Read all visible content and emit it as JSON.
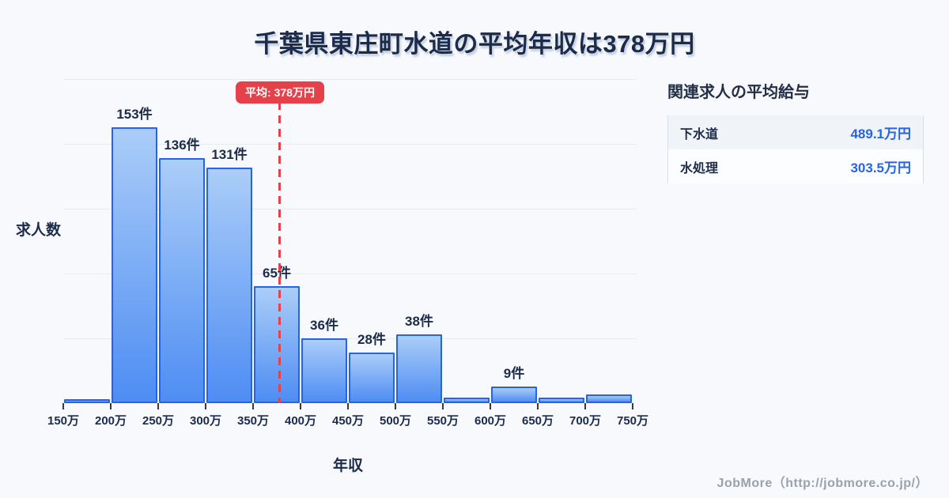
{
  "page": {
    "title": "千葉県東庄町水道の平均年収は378万円",
    "background_color": "#f7f9fc"
  },
  "chart_data": {
    "type": "bar",
    "title": "千葉県東庄町水道の平均年収は378万円",
    "xlabel": "年収",
    "ylabel": "求人数",
    "x_tick_labels": [
      "150万",
      "200万",
      "250万",
      "300万",
      "350万",
      "400万",
      "450万",
      "500万",
      "550万",
      "600万",
      "650万",
      "700万",
      "750万"
    ],
    "xlim": [
      150,
      750
    ],
    "ylim": [
      0,
      180
    ],
    "grid": true,
    "grid_divisions": 5,
    "bins": [
      {
        "range_start": "150万",
        "range_end": "200万",
        "count": 2,
        "label": ""
      },
      {
        "range_start": "200万",
        "range_end": "250万",
        "count": 153,
        "label": "153件"
      },
      {
        "range_start": "250万",
        "range_end": "300万",
        "count": 136,
        "label": "136件"
      },
      {
        "range_start": "300万",
        "range_end": "350万",
        "count": 131,
        "label": "131件"
      },
      {
        "range_start": "350万",
        "range_end": "400万",
        "count": 65,
        "label": "65件"
      },
      {
        "range_start": "400万",
        "range_end": "450万",
        "count": 36,
        "label": "36件"
      },
      {
        "range_start": "450万",
        "range_end": "500万",
        "count": 28,
        "label": "28件"
      },
      {
        "range_start": "500万",
        "range_end": "550万",
        "count": 38,
        "label": "38件"
      },
      {
        "range_start": "550万",
        "range_end": "600万",
        "count": 3,
        "label": ""
      },
      {
        "range_start": "600万",
        "range_end": "650万",
        "count": 9,
        "label": "9件"
      },
      {
        "range_start": "650万",
        "range_end": "700万",
        "count": 3,
        "label": ""
      },
      {
        "range_start": "700万",
        "range_end": "750万",
        "count": 5,
        "label": ""
      }
    ],
    "average_line": {
      "x_value": 378,
      "badge_label": "平均: 378万円",
      "color": "#e5414a"
    },
    "bar_colors": {
      "fill_top": "#abcdf8",
      "fill_bottom": "#4e8df3",
      "border": "#2563eb"
    }
  },
  "side_panel": {
    "heading": "関連求人の平均給与",
    "rows": [
      {
        "label": "下水道",
        "value": "489.1万円"
      },
      {
        "label": "水処理",
        "value": "303.5万円"
      }
    ],
    "value_color": "#2563eb"
  },
  "footer": {
    "credit": "JobMore（http://jobmore.co.jp/）"
  }
}
